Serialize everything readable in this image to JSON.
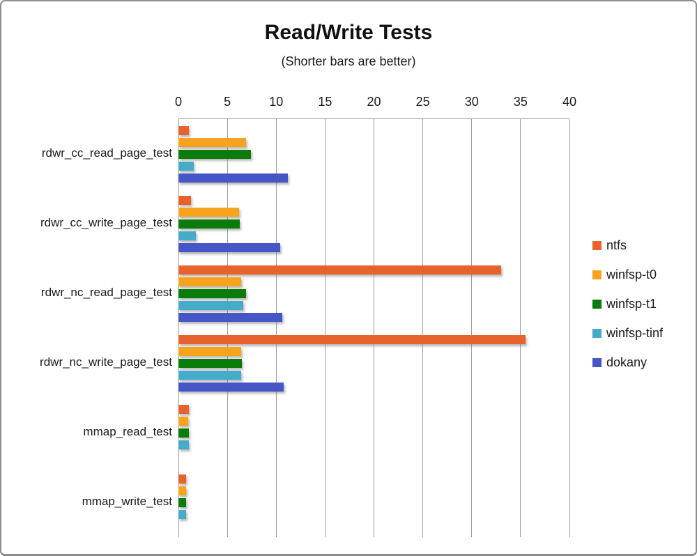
{
  "header": {
    "title": "Read/Write Tests",
    "subtitle": "(Shorter bars are better)"
  },
  "chart_data": {
    "type": "bar",
    "orientation": "horizontal",
    "title": "Read/Write Tests",
    "subtitle": "(Shorter bars are better)",
    "categories": [
      "rdwr_cc_read_page_test",
      "rdwr_cc_write_page_test",
      "rdwr_nc_read_page_test",
      "rdwr_nc_write_page_test",
      "mmap_read_test",
      "mmap_write_test"
    ],
    "series": [
      {
        "name": "ntfs",
        "color": "#E8622D",
        "values": [
          1.1,
          1.3,
          33.0,
          35.5,
          1.1,
          0.8
        ]
      },
      {
        "name": "winfsp-t0",
        "color": "#F8A31E",
        "values": [
          6.9,
          6.2,
          6.4,
          6.4,
          1.0,
          0.8
        ]
      },
      {
        "name": "winfsp-t1",
        "color": "#0B7B0B",
        "values": [
          7.4,
          6.3,
          6.9,
          6.5,
          1.1,
          0.8
        ]
      },
      {
        "name": "winfsp-tinf",
        "color": "#46ABC9",
        "values": [
          1.6,
          1.8,
          6.6,
          6.4,
          1.1,
          0.8
        ]
      },
      {
        "name": "dokany",
        "color": "#4656C6",
        "values": [
          11.2,
          10.4,
          10.6,
          10.8,
          0,
          0
        ]
      }
    ],
    "xlim": [
      0,
      40
    ],
    "x_ticks": [
      0,
      5,
      10,
      15,
      20,
      25,
      30,
      35,
      40
    ],
    "grid": true,
    "legend_position": "right",
    "axis_color": "#9b9b9b"
  }
}
